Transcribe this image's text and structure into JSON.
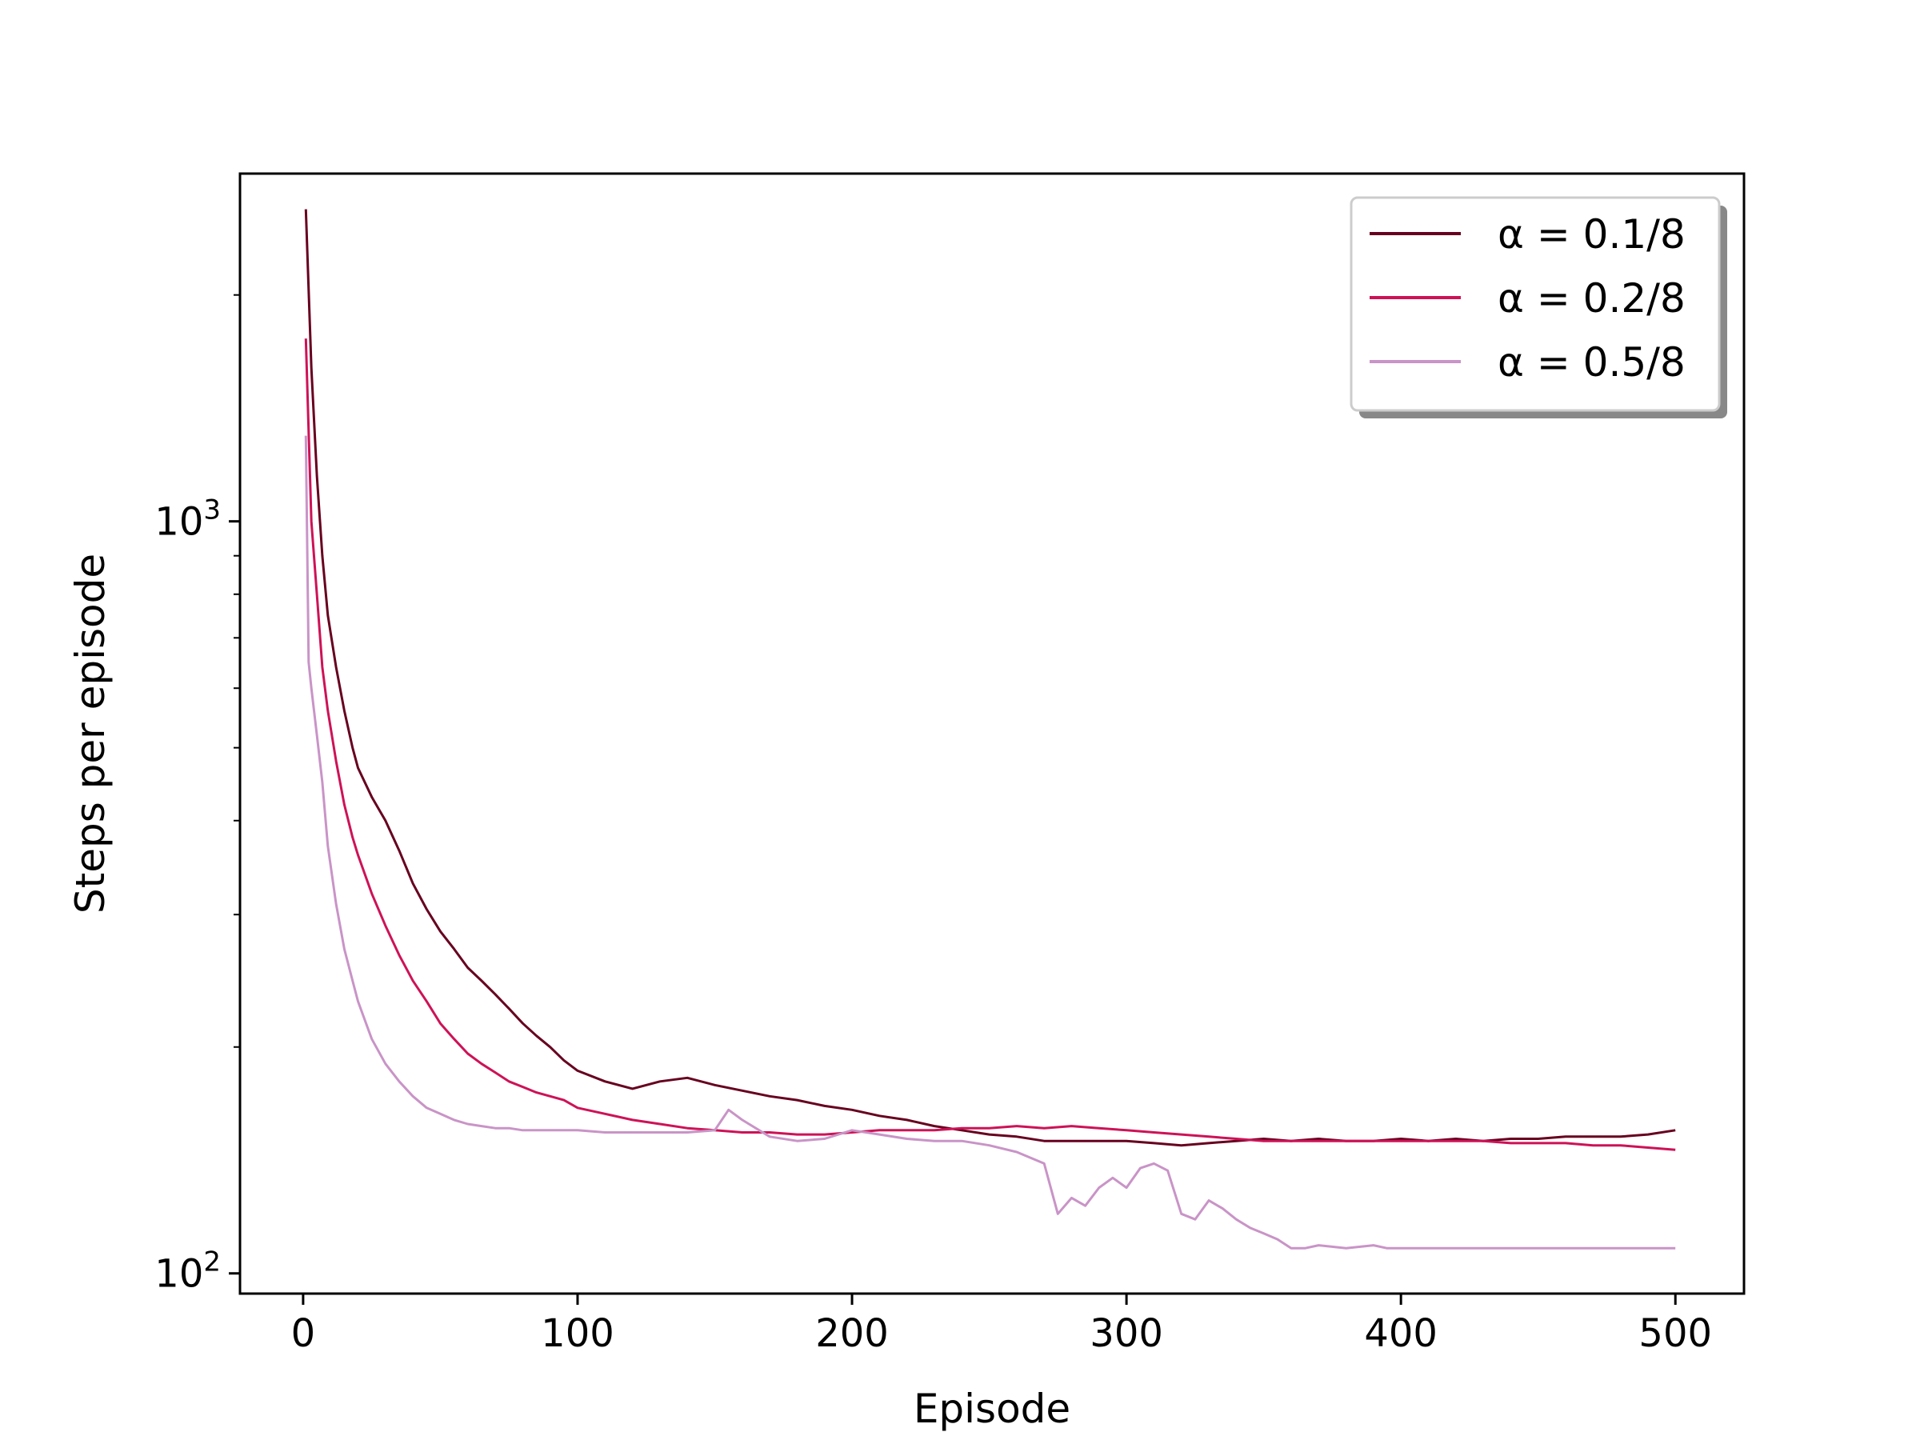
{
  "chart_data": {
    "type": "line",
    "title": "",
    "xlabel": "Episode",
    "ylabel": "Steps per episode",
    "xlim": [
      -23,
      525
    ],
    "ylim": [
      94,
      2900
    ],
    "yscale": "log",
    "x_ticks": [
      0,
      100,
      200,
      300,
      400,
      500
    ],
    "y_ticks": [
      {
        "value": 100,
        "base": "10",
        "exp": "2"
      },
      {
        "value": 1000,
        "base": "10",
        "exp": "3"
      }
    ],
    "grid": false,
    "legend_position": "top-right",
    "series": [
      {
        "name": "α = 0.1/8",
        "color": "#67001f",
        "points": [
          [
            1,
            2600
          ],
          [
            3,
            1600
          ],
          [
            5,
            1150
          ],
          [
            7,
            900
          ],
          [
            9,
            750
          ],
          [
            12,
            640
          ],
          [
            15,
            560
          ],
          [
            18,
            500
          ],
          [
            20,
            470
          ],
          [
            25,
            430
          ],
          [
            30,
            400
          ],
          [
            35,
            365
          ],
          [
            40,
            330
          ],
          [
            45,
            305
          ],
          [
            50,
            285
          ],
          [
            55,
            270
          ],
          [
            60,
            255
          ],
          [
            65,
            245
          ],
          [
            70,
            235
          ],
          [
            75,
            225
          ],
          [
            80,
            215
          ],
          [
            85,
            207
          ],
          [
            90,
            200
          ],
          [
            95,
            192
          ],
          [
            100,
            186
          ],
          [
            110,
            180
          ],
          [
            120,
            176
          ],
          [
            130,
            180
          ],
          [
            140,
            182
          ],
          [
            150,
            178
          ],
          [
            160,
            175
          ],
          [
            170,
            172
          ],
          [
            180,
            170
          ],
          [
            190,
            167
          ],
          [
            200,
            165
          ],
          [
            210,
            162
          ],
          [
            220,
            160
          ],
          [
            230,
            157
          ],
          [
            240,
            155
          ],
          [
            250,
            153
          ],
          [
            260,
            152
          ],
          [
            270,
            150
          ],
          [
            280,
            150
          ],
          [
            290,
            150
          ],
          [
            300,
            150
          ],
          [
            310,
            149
          ],
          [
            320,
            148
          ],
          [
            330,
            149
          ],
          [
            340,
            150
          ],
          [
            350,
            151
          ],
          [
            360,
            150
          ],
          [
            370,
            151
          ],
          [
            380,
            150
          ],
          [
            390,
            150
          ],
          [
            400,
            151
          ],
          [
            410,
            150
          ],
          [
            420,
            151
          ],
          [
            430,
            150
          ],
          [
            440,
            151
          ],
          [
            450,
            151
          ],
          [
            460,
            152
          ],
          [
            470,
            152
          ],
          [
            480,
            152
          ],
          [
            490,
            153
          ],
          [
            500,
            155
          ]
        ]
      },
      {
        "name": "α = 0.2/8",
        "color": "#ce1256",
        "points": [
          [
            1,
            1750
          ],
          [
            3,
            1000
          ],
          [
            5,
            800
          ],
          [
            7,
            640
          ],
          [
            9,
            560
          ],
          [
            12,
            480
          ],
          [
            15,
            420
          ],
          [
            18,
            380
          ],
          [
            20,
            360
          ],
          [
            25,
            320
          ],
          [
            30,
            290
          ],
          [
            35,
            265
          ],
          [
            40,
            245
          ],
          [
            45,
            230
          ],
          [
            50,
            215
          ],
          [
            55,
            205
          ],
          [
            60,
            196
          ],
          [
            65,
            190
          ],
          [
            70,
            185
          ],
          [
            75,
            180
          ],
          [
            80,
            177
          ],
          [
            85,
            174
          ],
          [
            90,
            172
          ],
          [
            95,
            170
          ],
          [
            100,
            166
          ],
          [
            110,
            163
          ],
          [
            120,
            160
          ],
          [
            130,
            158
          ],
          [
            140,
            156
          ],
          [
            150,
            155
          ],
          [
            160,
            154
          ],
          [
            170,
            154
          ],
          [
            180,
            153
          ],
          [
            190,
            153
          ],
          [
            200,
            154
          ],
          [
            210,
            155
          ],
          [
            220,
            155
          ],
          [
            230,
            155
          ],
          [
            240,
            156
          ],
          [
            250,
            156
          ],
          [
            260,
            157
          ],
          [
            270,
            156
          ],
          [
            280,
            157
          ],
          [
            290,
            156
          ],
          [
            300,
            155
          ],
          [
            310,
            154
          ],
          [
            320,
            153
          ],
          [
            330,
            152
          ],
          [
            340,
            151
          ],
          [
            350,
            150
          ],
          [
            360,
            150
          ],
          [
            370,
            150
          ],
          [
            380,
            150
          ],
          [
            390,
            150
          ],
          [
            400,
            150
          ],
          [
            410,
            150
          ],
          [
            420,
            150
          ],
          [
            430,
            150
          ],
          [
            440,
            149
          ],
          [
            450,
            149
          ],
          [
            460,
            149
          ],
          [
            470,
            148
          ],
          [
            480,
            148
          ],
          [
            490,
            147
          ],
          [
            500,
            146
          ]
        ]
      },
      {
        "name": "α = 0.5/8",
        "color": "#c994c7",
        "points": [
          [
            1,
            1300
          ],
          [
            2,
            650
          ],
          [
            3,
            600
          ],
          [
            5,
            520
          ],
          [
            7,
            450
          ],
          [
            9,
            370
          ],
          [
            12,
            310
          ],
          [
            15,
            270
          ],
          [
            18,
            245
          ],
          [
            20,
            230
          ],
          [
            25,
            205
          ],
          [
            30,
            190
          ],
          [
            35,
            180
          ],
          [
            40,
            172
          ],
          [
            45,
            166
          ],
          [
            50,
            163
          ],
          [
            55,
            160
          ],
          [
            60,
            158
          ],
          [
            65,
            157
          ],
          [
            70,
            156
          ],
          [
            75,
            156
          ],
          [
            80,
            155
          ],
          [
            85,
            155
          ],
          [
            90,
            155
          ],
          [
            100,
            155
          ],
          [
            110,
            154
          ],
          [
            120,
            154
          ],
          [
            130,
            154
          ],
          [
            140,
            154
          ],
          [
            150,
            155
          ],
          [
            155,
            165
          ],
          [
            160,
            160
          ],
          [
            170,
            152
          ],
          [
            180,
            150
          ],
          [
            190,
            151
          ],
          [
            200,
            155
          ],
          [
            210,
            153
          ],
          [
            220,
            151
          ],
          [
            230,
            150
          ],
          [
            240,
            150
          ],
          [
            250,
            148
          ],
          [
            260,
            145
          ],
          [
            270,
            140
          ],
          [
            275,
            120
          ],
          [
            280,
            126
          ],
          [
            285,
            123
          ],
          [
            290,
            130
          ],
          [
            295,
            134
          ],
          [
            300,
            130
          ],
          [
            305,
            138
          ],
          [
            310,
            140
          ],
          [
            315,
            137
          ],
          [
            320,
            120
          ],
          [
            325,
            118
          ],
          [
            330,
            125
          ],
          [
            335,
            122
          ],
          [
            340,
            118
          ],
          [
            345,
            115
          ],
          [
            350,
            113
          ],
          [
            355,
            111
          ],
          [
            360,
            108
          ],
          [
            365,
            108
          ],
          [
            370,
            109
          ],
          [
            380,
            108
          ],
          [
            390,
            109
          ],
          [
            395,
            108
          ],
          [
            400,
            108
          ],
          [
            420,
            108
          ],
          [
            450,
            108
          ],
          [
            480,
            108
          ],
          [
            500,
            108
          ]
        ]
      }
    ]
  }
}
